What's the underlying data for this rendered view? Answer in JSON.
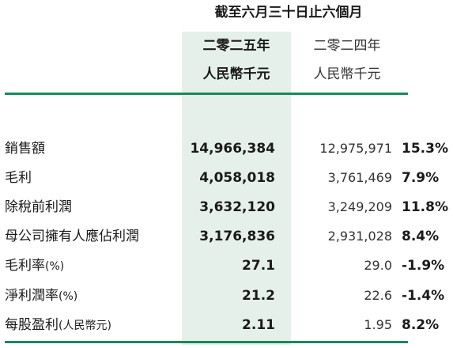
{
  "header": {
    "period": "截至六月三十日止六個月",
    "current": {
      "year": "二零二五年",
      "unit": "人民幣千元"
    },
    "previous": {
      "year": "二零二四年",
      "unit": "人民幣千元"
    }
  },
  "rows": [
    {
      "label": "銷售額",
      "suffix": "",
      "current": "14,966,384",
      "previous": "12,975,971",
      "change": "15.3%"
    },
    {
      "label": "毛利",
      "suffix": "",
      "current": "4,058,018",
      "previous": "3,761,469",
      "change": "7.9%"
    },
    {
      "label": "除稅前利潤",
      "suffix": "",
      "current": "3,632,120",
      "previous": "3,249,209",
      "change": "11.8%"
    },
    {
      "label": "母公司擁有人應佔利潤",
      "suffix": "",
      "current": "3,176,836",
      "previous": "2,931,028",
      "change": "8.4%"
    },
    {
      "label": "毛利率",
      "suffix": "(%)",
      "current": "27.1",
      "previous": "29.0",
      "change": "-1.9%"
    },
    {
      "label": "淨利潤率",
      "suffix": "(%)",
      "current": "21.2",
      "previous": "22.6",
      "change": "-1.4%"
    },
    {
      "label": "每股盈利",
      "suffix": "(人民幣元)",
      "current": "2.11",
      "previous": "1.95",
      "change": "8.2%"
    }
  ],
  "colors": {
    "accent_rule": "#168a5b",
    "highlight_column": "#e6f0ea"
  }
}
